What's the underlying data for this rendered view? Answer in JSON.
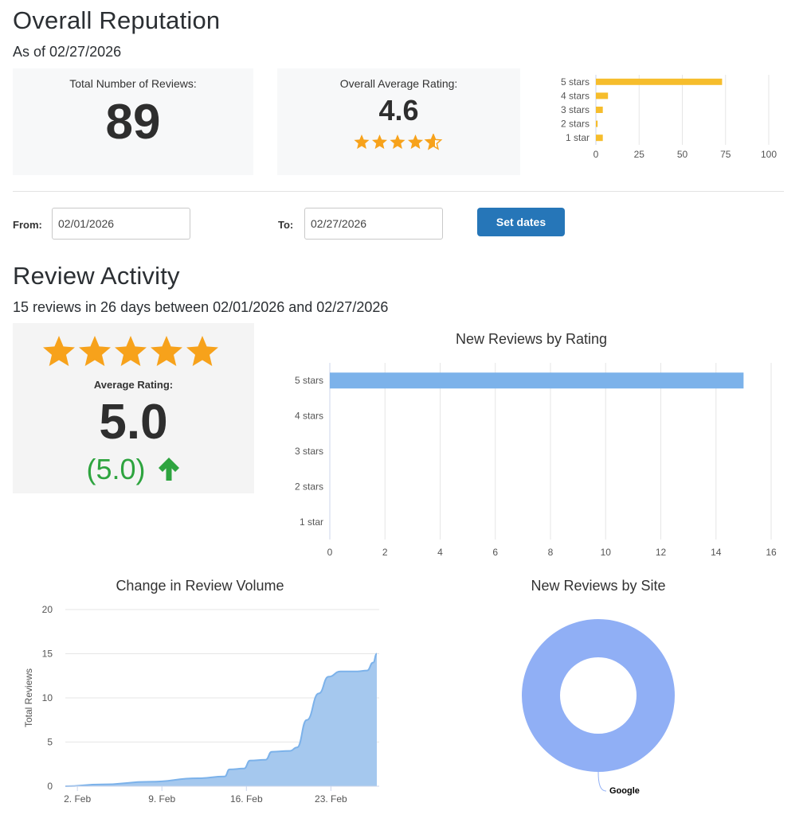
{
  "overall": {
    "title": "Overall Reputation",
    "as_of": "As of 02/27/2026",
    "total_label": "Total Number of Reviews:",
    "total_value": "89",
    "avg_label": "Overall Average Rating:",
    "avg_value": "4.6",
    "avg_stars": 4.6,
    "star_color": "#f7a21b"
  },
  "filter": {
    "from_label": "From:",
    "from_value": "02/01/2026",
    "to_label": "To:",
    "to_value": "02/27/2026",
    "button_label": "Set dates"
  },
  "activity": {
    "title": "Review Activity",
    "summary": "15 reviews in 26 days between 02/01/2026 and 02/27/2026",
    "avg_label": "Average Rating:",
    "avg_value": "5.0",
    "change_value": "(5.0)",
    "change_direction": "up",
    "change_color": "#2ea43f",
    "stars": 5
  },
  "chart_data": [
    {
      "type": "bar",
      "orientation": "horizontal",
      "categories": [
        "5 stars",
        "4 stars",
        "3 stars",
        "2 stars",
        "1 star"
      ],
      "values": [
        73,
        7,
        4,
        1,
        4
      ],
      "xlim": [
        0,
        100
      ],
      "xticks": [
        "0",
        "25",
        "50",
        "75",
        "100"
      ],
      "color": "#f6bd2c",
      "grid": true
    },
    {
      "type": "bar",
      "orientation": "horizontal",
      "title": "New Reviews by Rating",
      "categories": [
        "5 stars",
        "4 stars",
        "3 stars",
        "2 stars",
        "1 star"
      ],
      "values": [
        15,
        0,
        0,
        0,
        0
      ],
      "xlim": [
        0,
        16
      ],
      "xticks": [
        "0",
        "2",
        "4",
        "6",
        "8",
        "10",
        "12",
        "14",
        "16"
      ],
      "color": "#7cb2ea",
      "grid": true
    },
    {
      "type": "area",
      "title": "Change in Review Volume",
      "ylabel": "Total Reviews",
      "ylim": [
        0,
        20
      ],
      "yticks": [
        "0",
        "5",
        "10",
        "15",
        "20"
      ],
      "xticks": [
        "2. Feb",
        "9. Feb",
        "16. Feb",
        "23. Feb"
      ],
      "xtick_days": [
        2,
        9,
        16,
        23
      ],
      "xlim": [
        1,
        27
      ],
      "x": [
        1,
        4,
        8,
        12,
        14.2,
        14.6,
        15.8,
        16.3,
        17.6,
        18.1,
        19.6,
        20.2,
        21,
        22,
        22.8,
        23.8,
        24.3,
        25.2,
        26,
        26.5,
        26.8
      ],
      "y": [
        0,
        0.2,
        0.5,
        0.9,
        1.1,
        1.9,
        2,
        2.9,
        3,
        3.9,
        4,
        4.4,
        7.5,
        10.5,
        12.4,
        13,
        13,
        13,
        13.1,
        14,
        15
      ],
      "color": "#7cb2ea",
      "fill": "#a5c8ee",
      "grid": true
    },
    {
      "type": "pie",
      "style": "donut",
      "title": "New Reviews by Site",
      "labels": [
        "Google"
      ],
      "values": [
        15
      ],
      "colors": [
        "#90aff5"
      ]
    }
  ]
}
